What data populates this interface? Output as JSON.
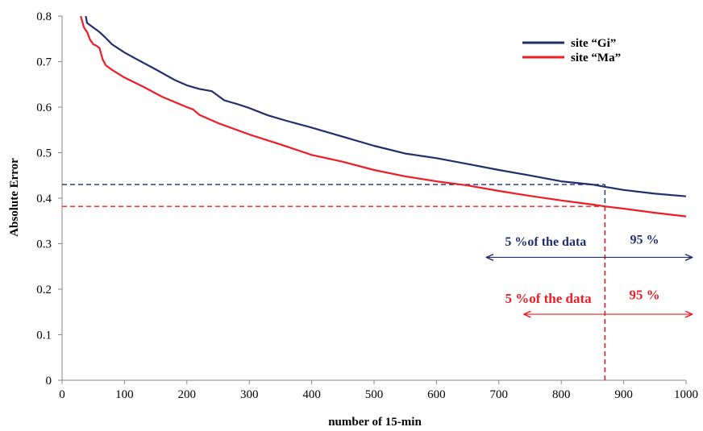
{
  "chart_data": {
    "type": "line",
    "xlabel": "number of 15-min",
    "ylabel": "Absolute Error",
    "xlim": [
      0,
      1000
    ],
    "ylim": [
      0,
      0.8
    ],
    "xticks": [
      0,
      100,
      200,
      300,
      400,
      500,
      600,
      700,
      800,
      900,
      1000
    ],
    "yticks": [
      0,
      0.1,
      0.2,
      0.3,
      0.4,
      0.5,
      0.6,
      0.7,
      0.8
    ],
    "ytick_labels": [
      "0",
      "0.1",
      "0.2",
      "0.3",
      "0.4",
      "0.5",
      "0.6",
      "0.7",
      "0.8"
    ],
    "grid": false,
    "legend_position": "top-right",
    "series": [
      {
        "name": "site “Gi”",
        "color": "#1f2f6b",
        "x": [
          38,
          40,
          50,
          60,
          70,
          80,
          100,
          120,
          150,
          180,
          200,
          220,
          240,
          250,
          260,
          280,
          300,
          330,
          360,
          400,
          450,
          500,
          550,
          600,
          650,
          700,
          750,
          800,
          850,
          870,
          900,
          950,
          1000
        ],
        "y": [
          0.8,
          0.785,
          0.775,
          0.765,
          0.752,
          0.738,
          0.72,
          0.705,
          0.683,
          0.66,
          0.648,
          0.64,
          0.635,
          0.625,
          0.615,
          0.607,
          0.598,
          0.582,
          0.57,
          0.555,
          0.535,
          0.515,
          0.498,
          0.488,
          0.475,
          0.462,
          0.45,
          0.437,
          0.43,
          0.425,
          0.418,
          0.41,
          0.404
        ]
      },
      {
        "name": "site “Ma”",
        "color": "#ee1c24",
        "x": [
          30,
          35,
          40,
          45,
          50,
          55,
          60,
          65,
          70,
          80,
          100,
          130,
          160,
          200,
          210,
          220,
          250,
          300,
          350,
          400,
          450,
          500,
          550,
          600,
          650,
          700,
          750,
          800,
          850,
          870,
          900,
          950,
          1000
        ],
        "y": [
          0.8,
          0.775,
          0.765,
          0.748,
          0.738,
          0.735,
          0.73,
          0.705,
          0.692,
          0.682,
          0.665,
          0.645,
          0.623,
          0.6,
          0.595,
          0.583,
          0.565,
          0.54,
          0.518,
          0.495,
          0.48,
          0.462,
          0.448,
          0.437,
          0.428,
          0.416,
          0.405,
          0.395,
          0.386,
          0.382,
          0.377,
          0.368,
          0.36
        ]
      }
    ],
    "reference_lines": [
      {
        "type": "horizontal",
        "y": 0.43,
        "x_from": 0,
        "x_to": 870,
        "color": "#1f2f6b",
        "dashed": true
      },
      {
        "type": "horizontal",
        "y": 0.382,
        "x_from": 0,
        "x_to": 870,
        "color": "#ee1c24",
        "dashed": true
      },
      {
        "type": "vertical",
        "x": 870,
        "y_from": 0,
        "y_to": 0.43,
        "color": "#1f2f6b",
        "dashed": true
      },
      {
        "type": "vertical",
        "x": 870,
        "y_from": 0,
        "y_to": 0.382,
        "color": "#ee1c24",
        "dashed": true
      }
    ],
    "annotations": [
      {
        "text": "5 %of the data",
        "color": "#1f2f6b",
        "arrow_from_x": 680,
        "arrow_to_x": 870,
        "arrow_y": 0.27,
        "label_y": 0.296
      },
      {
        "text": "95 %",
        "color": "#1f2f6b",
        "arrow_from_x": 870,
        "arrow_to_x": 1010,
        "arrow_y": 0.27,
        "label_y": 0.3
      },
      {
        "text": "5 %of the data",
        "color": "#ee1c24",
        "arrow_from_x": 740,
        "arrow_to_x": 870,
        "arrow_y": 0.145,
        "label_y": 0.17
      },
      {
        "text": "95 %",
        "color": "#ee1c24",
        "arrow_from_x": 870,
        "arrow_to_x": 1010,
        "arrow_y": 0.145,
        "label_y": 0.178
      }
    ]
  }
}
